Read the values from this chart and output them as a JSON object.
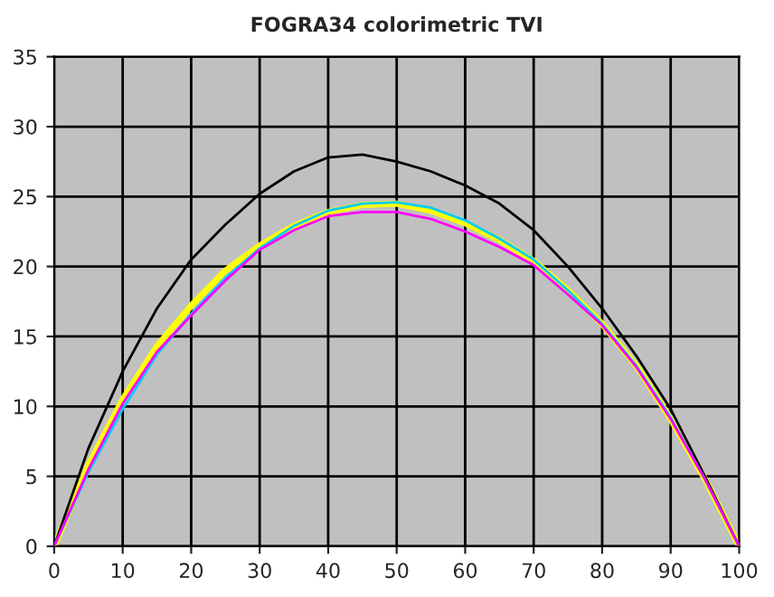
{
  "chart_data": {
    "type": "line",
    "title": "FOGRA34 colorimetric TVI",
    "x": [
      0,
      5,
      10,
      15,
      20,
      25,
      30,
      35,
      40,
      45,
      50,
      55,
      60,
      65,
      70,
      75,
      80,
      85,
      90,
      95,
      100
    ],
    "series": [
      {
        "color": "#000000",
        "values": [
          0,
          7,
          12.5,
          17,
          20.5,
          23,
          25.2,
          26.8,
          27.8,
          28,
          27.5,
          26.8,
          25.8,
          24.5,
          22.6,
          20,
          17,
          13.6,
          9.8,
          5,
          0
        ]
      },
      {
        "color": "#00ccff",
        "values": [
          0,
          5.3,
          9.8,
          13.7,
          16.6,
          19.2,
          21.3,
          22.9,
          24,
          24.5,
          24.6,
          24.2,
          23.3,
          22,
          20.5,
          18.3,
          15.9,
          12.9,
          9.2,
          4.8,
          0
        ]
      },
      {
        "color": "#ff00ff",
        "values": [
          0,
          5.5,
          10.2,
          13.9,
          16.5,
          19,
          21.2,
          22.6,
          23.6,
          23.9,
          23.9,
          23.4,
          22.5,
          21.4,
          20.1,
          18,
          15.8,
          12.8,
          9.1,
          4.8,
          0
        ]
      },
      {
        "color": "#ffff00",
        "values": [
          0,
          5.8,
          10.5,
          14.3,
          17.2,
          19.7,
          21.5,
          22.9,
          23.9,
          24.4,
          24.5,
          24,
          23.1,
          21.9,
          20.4,
          18.3,
          15.9,
          12.9,
          9.1,
          4.8,
          0
        ]
      }
    ],
    "xlim": [
      0,
      100
    ],
    "xticks": [
      0,
      10,
      20,
      30,
      40,
      50,
      60,
      70,
      80,
      90,
      100
    ],
    "ylim": [
      0,
      35
    ],
    "yticks": [
      0,
      5,
      10,
      15,
      20,
      25,
      30,
      35
    ],
    "grid": true,
    "legend": false,
    "marker": "none",
    "line_style": "solid"
  }
}
